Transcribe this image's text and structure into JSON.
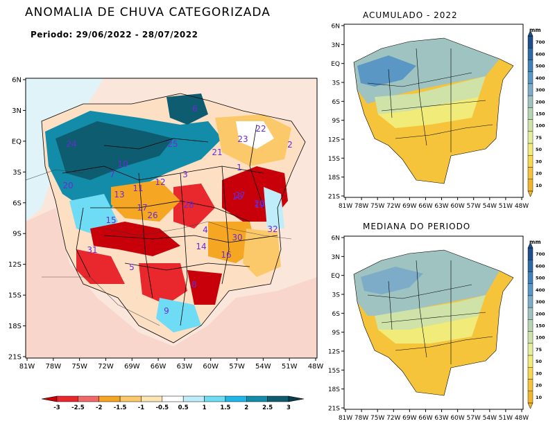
{
  "main": {
    "title": "ANOMALIA DE CHUVA CATEGORIZADA",
    "period": "Periodo: 29/06/2022 - 28/07/2022",
    "lat_ticks": [
      "6N",
      "3N",
      "EQ",
      "3S",
      "6S",
      "9S",
      "12S",
      "15S",
      "18S",
      "21S"
    ],
    "lon_ticks": [
      "81W",
      "78W",
      "75W",
      "72W",
      "69W",
      "66W",
      "63W",
      "60W",
      "57W",
      "54W",
      "51W",
      "48W"
    ],
    "basin_labels": [
      "1",
      "2",
      "3",
      "4",
      "5",
      "6",
      "7",
      "8",
      "9",
      "10",
      "11",
      "12",
      "13",
      "14",
      "15",
      "16",
      "17",
      "18",
      "19",
      "20",
      "21",
      "22",
      "23",
      "24",
      "25",
      "26",
      "27",
      "28",
      "29",
      "30",
      "31",
      "32"
    ],
    "colorbar": {
      "labels": [
        "-3",
        "-2.5",
        "-2",
        "-1.5",
        "-1",
        "-0.5",
        "0.5",
        "1",
        "1.5",
        "2",
        "2.5",
        "3"
      ],
      "colors": [
        "#c8000a",
        "#e8282d",
        "#f06a6a",
        "#f5a623",
        "#fbc96a",
        "#fde4b4",
        "#ffffff",
        "#bfeefa",
        "#6fdcf5",
        "#1fb7e8",
        "#128ca8",
        "#0e5c70",
        "#083c4a"
      ]
    }
  },
  "acumulado": {
    "title": "ACUMULADO - 2022",
    "lat_ticks": [
      "6N",
      "3N",
      "EQ",
      "3S",
      "6S",
      "9S",
      "12S",
      "15S",
      "18S",
      "21S"
    ],
    "lon_ticks": [
      "81W",
      "78W",
      "75W",
      "72W",
      "69W",
      "66W",
      "63W",
      "60W",
      "57W",
      "54W",
      "51W",
      "48W"
    ]
  },
  "mediana": {
    "title": "MEDIANA DO PERIODO",
    "lat_ticks": [
      "6N",
      "3N",
      "EQ",
      "3S",
      "6S",
      "9S",
      "12S",
      "15S",
      "18S",
      "21S"
    ],
    "lon_ticks": [
      "81W",
      "78W",
      "75W",
      "72W",
      "69W",
      "66W",
      "63W",
      "60W",
      "57W",
      "54W",
      "51W",
      "48W"
    ]
  },
  "mm_scale": {
    "unit": "mm",
    "labels": [
      "700",
      "600",
      "500",
      "400",
      "300",
      "200",
      "150",
      "100",
      "75",
      "50",
      "30",
      "20",
      "10"
    ],
    "colors": [
      "#1f4e8c",
      "#2e6aa6",
      "#3f81b8",
      "#5a97c4",
      "#7cacc8",
      "#9fc3c0",
      "#b7d4b4",
      "#cfe3a8",
      "#e4ee9c",
      "#f1ec7a",
      "#f7d84f",
      "#f5c43a",
      "#f1b52c"
    ]
  }
}
